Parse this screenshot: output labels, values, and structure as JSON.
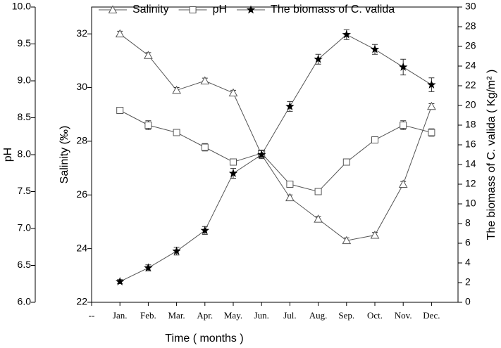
{
  "chart_data": {
    "type": "line",
    "xlabel": "Time ( months )",
    "ylabel": "Salinity (‰)",
    "y2label": "The biomass of C. valida ( Kg/m² )",
    "y3label": "pH",
    "categories": [
      "--",
      "Jan.",
      "Feb.",
      "Mar.",
      "Apr.",
      "May.",
      "Jun.",
      "Jul.",
      "Aug.",
      "Sep.",
      "Oct.",
      "Nov.",
      "Dec."
    ],
    "ylim": [
      22,
      33
    ],
    "yticks": [
      22,
      24,
      26,
      28,
      30,
      32
    ],
    "y2lim": [
      0,
      30
    ],
    "y2ticks": [
      0,
      2,
      4,
      6,
      8,
      10,
      12,
      14,
      16,
      18,
      20,
      22,
      24,
      26,
      28,
      30
    ],
    "y3lim": [
      6,
      10
    ],
    "y3ticks": [
      {
        "value": 6,
        "label": "6.0"
      },
      6.5,
      {
        "value": 7,
        "label": "7.0"
      },
      7.5,
      {
        "value": 8,
        "label": "8.0"
      },
      8.5,
      {
        "value": 9,
        "label": "9.0"
      },
      9.5,
      {
        "value": 10,
        "label": "10.0"
      }
    ],
    "series": [
      {
        "name": "Salinity",
        "marker": "triangle",
        "color": "#555555",
        "axis": "y",
        "values": [
          null,
          32.0,
          31.2,
          29.9,
          30.25,
          29.8,
          27.5,
          25.9,
          25.1,
          24.3,
          24.5,
          26.4,
          29.3
        ],
        "errors": [
          null,
          0.1,
          0.1,
          0.1,
          0.1,
          0.1,
          0.1,
          0.1,
          0.1,
          0.1,
          0.1,
          0.1,
          0.1
        ]
      },
      {
        "name": "pH",
        "marker": "square",
        "color": "#555555",
        "axis": "y3",
        "values": [
          null,
          8.6,
          8.4,
          8.3,
          8.1,
          7.9,
          8.02,
          7.6,
          7.5,
          7.9,
          8.2,
          8.4,
          8.3
        ],
        "errors": [
          null,
          0.03,
          0.06,
          0.03,
          0.05,
          0.04,
          0.04,
          0.03,
          0.03,
          0.03,
          0.03,
          0.06,
          0.05
        ]
      },
      {
        "name": "The biomass of C. valida",
        "marker": "star",
        "color": "#000000",
        "axis": "y2",
        "values": [
          null,
          2.1,
          3.5,
          5.2,
          7.3,
          13.1,
          15.0,
          19.9,
          24.7,
          27.2,
          25.7,
          23.9,
          22.1
        ],
        "errors": [
          null,
          0.2,
          0.3,
          0.4,
          0.4,
          0.5,
          0.4,
          0.5,
          0.5,
          0.5,
          0.5,
          0.8,
          0.7
        ]
      }
    ]
  }
}
